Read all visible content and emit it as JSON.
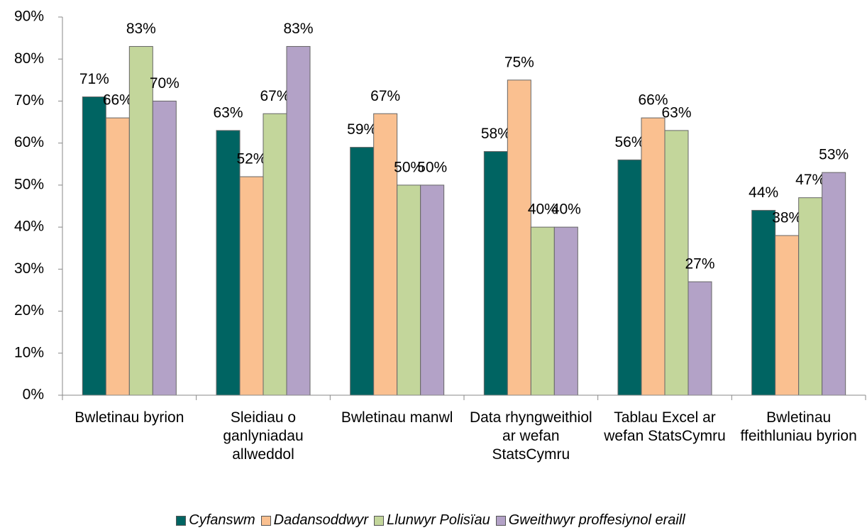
{
  "chart_data": {
    "type": "bar",
    "categories": [
      "Bwletinau byrion",
      "Sleidiau o ganlyniadau allweddol",
      "Bwletinau manwl",
      "Data rhyngweithiol ar wefan StatsCymru",
      "Tablau Excel ar wefan StatsCymru",
      "Bwletinau ffeithluniau byrion"
    ],
    "series": [
      {
        "name": "Cyfanswm",
        "color": "#006462",
        "values": [
          71,
          63,
          59,
          58,
          56,
          44
        ],
        "value_labels": [
          "71%",
          "63%",
          "59%",
          "58%",
          "56%",
          "44%"
        ]
      },
      {
        "name": "Dadansoddwyr",
        "color": "#fac090",
        "values": [
          66,
          52,
          67,
          75,
          66,
          38
        ],
        "value_labels": [
          "66%",
          "52%",
          "67%",
          "75%",
          "66%",
          "38%"
        ]
      },
      {
        "name": "Llunwyr Polisïau",
        "color": "#c3d69b",
        "values": [
          83,
          67,
          50,
          40,
          63,
          47
        ],
        "value_labels": [
          "83%",
          "67%",
          "50%",
          "40%",
          "63%",
          "47%"
        ]
      },
      {
        "name": "Gweithwyr proffesiynol eraill",
        "color": "#b3a2c7",
        "values": [
          70,
          83,
          50,
          40,
          27,
          53
        ],
        "value_labels": [
          "70%",
          "83%",
          "50%",
          "40%",
          "27%",
          "53%"
        ]
      }
    ],
    "ylim": [
      0,
      90
    ],
    "yticks": [
      {
        "value": 0,
        "label": "0%"
      },
      {
        "value": 10,
        "label": "10%"
      },
      {
        "value": 20,
        "label": "20%"
      },
      {
        "value": 30,
        "label": "30%"
      },
      {
        "value": 40,
        "label": "40%"
      },
      {
        "value": 50,
        "label": "50%"
      },
      {
        "value": 60,
        "label": "60%"
      },
      {
        "value": 70,
        "label": "70%"
      },
      {
        "value": 80,
        "label": "80%"
      },
      {
        "value": 90,
        "label": "90%"
      }
    ],
    "grid": false,
    "legend": "bottom"
  }
}
